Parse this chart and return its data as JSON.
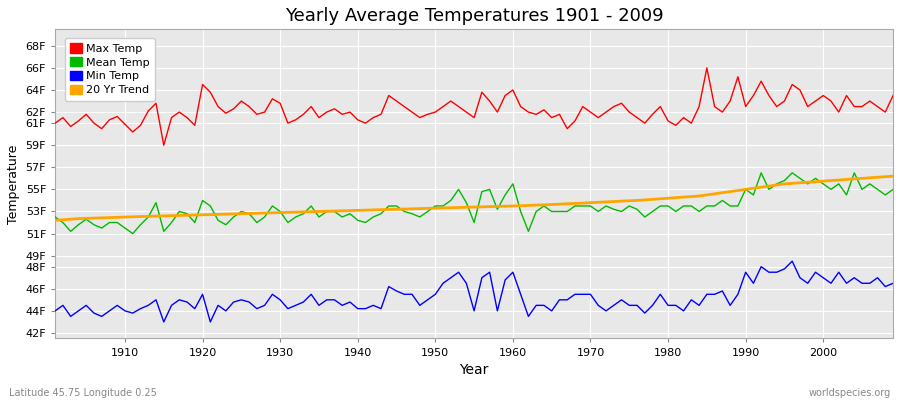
{
  "title": "Yearly Average Temperatures 1901 - 2009",
  "xlabel": "Year",
  "ylabel": "Temperature",
  "bottom_left_label": "Latitude 45.75 Longitude 0.25",
  "bottom_right_label": "worldspecies.org",
  "start_year": 1901,
  "end_year": 2009,
  "ytick_vals": [
    42,
    44,
    46,
    48,
    49,
    51,
    53,
    55,
    57,
    59,
    61,
    62,
    64,
    66,
    68
  ],
  "ytick_labels": [
    "42F",
    "44F",
    "46F",
    "48F",
    "49F",
    "51F",
    "53F",
    "55F",
    "57F",
    "59F",
    "61F",
    "62F",
    "64F",
    "66F",
    "68F"
  ],
  "ylim": [
    41.5,
    69.5
  ],
  "xlim": [
    1901,
    2009
  ],
  "fig_color": "#ffffff",
  "plot_bg_color": "#e8e8e8",
  "grid_color": "#ffffff",
  "colors": {
    "max": "#ff0000",
    "mean": "#00bb00",
    "min": "#0000ff",
    "trend": "#ffa500"
  },
  "legend_labels": [
    "Max Temp",
    "Mean Temp",
    "Min Temp",
    "20 Yr Trend"
  ],
  "max_temps": [
    61.0,
    61.5,
    60.7,
    61.2,
    61.8,
    61.0,
    60.5,
    61.3,
    61.6,
    60.9,
    60.2,
    60.8,
    62.1,
    62.8,
    59.0,
    61.5,
    62.0,
    61.5,
    60.8,
    64.5,
    63.8,
    62.5,
    61.9,
    62.3,
    63.0,
    62.5,
    61.8,
    62.0,
    63.2,
    62.8,
    61.0,
    61.3,
    61.8,
    62.5,
    61.5,
    62.0,
    62.3,
    61.8,
    62.0,
    61.3,
    61.0,
    61.5,
    61.8,
    63.5,
    63.0,
    62.5,
    62.0,
    61.5,
    61.8,
    62.0,
    62.5,
    63.0,
    62.5,
    62.0,
    61.5,
    63.8,
    63.0,
    62.0,
    63.5,
    64.0,
    62.5,
    62.0,
    61.8,
    62.2,
    61.5,
    61.8,
    60.5,
    61.2,
    62.5,
    62.0,
    61.5,
    62.0,
    62.5,
    62.8,
    62.0,
    61.5,
    61.0,
    61.8,
    62.5,
    61.2,
    60.8,
    61.5,
    61.0,
    62.5,
    66.0,
    62.5,
    62.0,
    63.0,
    65.2,
    62.5,
    63.5,
    64.8,
    63.5,
    62.5,
    63.0,
    64.5,
    64.0,
    62.5,
    63.0,
    63.5,
    63.0,
    62.0,
    63.5,
    62.5,
    62.5,
    63.0,
    62.5,
    62.0,
    63.5
  ],
  "mean_temps": [
    52.5,
    52.0,
    51.2,
    51.8,
    52.3,
    51.8,
    51.5,
    52.0,
    52.0,
    51.5,
    51.0,
    51.8,
    52.5,
    53.8,
    51.2,
    52.0,
    53.0,
    52.8,
    52.0,
    54.0,
    53.5,
    52.2,
    51.8,
    52.5,
    53.0,
    52.8,
    52.0,
    52.5,
    53.5,
    53.0,
    52.0,
    52.5,
    52.8,
    53.5,
    52.5,
    53.0,
    53.0,
    52.5,
    52.8,
    52.2,
    52.0,
    52.5,
    52.8,
    53.5,
    53.5,
    53.0,
    52.8,
    52.5,
    53.0,
    53.5,
    53.5,
    54.0,
    55.0,
    53.8,
    52.0,
    54.8,
    55.0,
    53.2,
    54.5,
    55.5,
    53.0,
    51.2,
    53.0,
    53.5,
    53.0,
    53.0,
    53.0,
    53.5,
    53.5,
    53.5,
    53.0,
    53.5,
    53.2,
    53.0,
    53.5,
    53.2,
    52.5,
    53.0,
    53.5,
    53.5,
    53.0,
    53.5,
    53.5,
    53.0,
    53.5,
    53.5,
    54.0,
    53.5,
    53.5,
    55.0,
    54.5,
    56.5,
    55.0,
    55.5,
    55.8,
    56.5,
    56.0,
    55.5,
    56.0,
    55.5,
    55.0,
    55.5,
    54.5,
    56.5,
    55.0,
    55.5,
    55.0,
    54.5,
    55.0
  ],
  "min_temps": [
    44.0,
    44.5,
    43.5,
    44.0,
    44.5,
    43.8,
    43.5,
    44.0,
    44.5,
    44.0,
    43.8,
    44.2,
    44.5,
    45.0,
    43.0,
    44.5,
    45.0,
    44.8,
    44.2,
    45.5,
    43.0,
    44.5,
    44.0,
    44.8,
    45.0,
    44.8,
    44.2,
    44.5,
    45.5,
    45.0,
    44.2,
    44.5,
    44.8,
    45.5,
    44.5,
    45.0,
    45.0,
    44.5,
    44.8,
    44.2,
    44.2,
    44.5,
    44.2,
    46.2,
    45.8,
    45.5,
    45.5,
    44.5,
    45.0,
    45.5,
    46.5,
    47.0,
    47.5,
    46.5,
    44.0,
    47.0,
    47.5,
    44.0,
    46.8,
    47.5,
    45.5,
    43.5,
    44.5,
    44.5,
    44.0,
    45.0,
    45.0,
    45.5,
    45.5,
    45.5,
    44.5,
    44.0,
    44.5,
    45.0,
    44.5,
    44.5,
    43.8,
    44.5,
    45.5,
    44.5,
    44.5,
    44.0,
    45.0,
    44.5,
    45.5,
    45.5,
    45.8,
    44.5,
    45.5,
    47.5,
    46.5,
    48.0,
    47.5,
    47.5,
    47.8,
    48.5,
    47.0,
    46.5,
    47.5,
    47.0,
    46.5,
    47.5,
    46.5,
    47.0,
    46.5,
    46.5,
    47.0,
    46.2,
    46.5
  ],
  "trend_temps": [
    52.2,
    52.25,
    52.3,
    52.35,
    52.38,
    52.4,
    52.42,
    52.45,
    52.47,
    52.5,
    52.52,
    52.54,
    52.56,
    52.58,
    52.6,
    52.62,
    52.64,
    52.66,
    52.68,
    52.7,
    52.72,
    52.74,
    52.76,
    52.78,
    52.8,
    52.82,
    52.84,
    52.86,
    52.88,
    52.9,
    52.92,
    52.94,
    52.96,
    52.98,
    53.0,
    53.02,
    53.04,
    53.06,
    53.08,
    53.1,
    53.12,
    53.14,
    53.16,
    53.18,
    53.2,
    53.22,
    53.24,
    53.26,
    53.28,
    53.3,
    53.32,
    53.34,
    53.36,
    53.38,
    53.4,
    53.42,
    53.44,
    53.46,
    53.48,
    53.5,
    53.52,
    53.55,
    53.58,
    53.6,
    53.63,
    53.66,
    53.7,
    53.73,
    53.76,
    53.8,
    53.83,
    53.87,
    53.9,
    53.94,
    53.97,
    54.0,
    54.05,
    54.1,
    54.15,
    54.2,
    54.25,
    54.3,
    54.35,
    54.4,
    54.5,
    54.6,
    54.7,
    54.8,
    54.9,
    55.0,
    55.1,
    55.2,
    55.3,
    55.4,
    55.5,
    55.55,
    55.6,
    55.65,
    55.7,
    55.75,
    55.8,
    55.85,
    55.9,
    55.95,
    56.0,
    56.05,
    56.1,
    56.15,
    56.2
  ]
}
